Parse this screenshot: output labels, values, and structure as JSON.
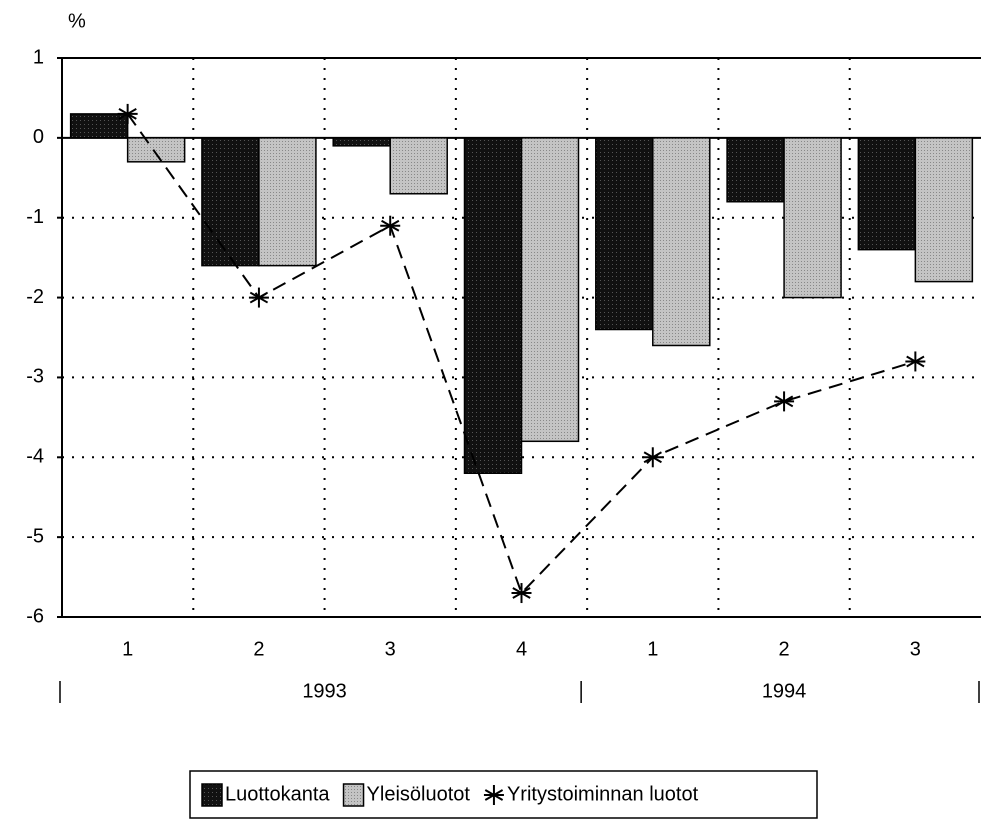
{
  "chart_data": {
    "type": "bar",
    "y_unit": "%",
    "categories": [
      "1",
      "2",
      "3",
      "4",
      "1",
      "2",
      "3"
    ],
    "groups": [
      {
        "label": "1993",
        "count": 4
      },
      {
        "label": "1994",
        "count": 3
      }
    ],
    "series": [
      {
        "name": "Luottokanta",
        "color": "#111111",
        "kind": "bar",
        "values": [
          0.3,
          -1.6,
          -0.1,
          -4.2,
          -2.4,
          -0.8,
          -1.4
        ]
      },
      {
        "name": "Yleisöluotot",
        "color": "#bbbbbb",
        "kind": "bar",
        "values": [
          -0.3,
          -1.6,
          -0.7,
          -3.8,
          -2.6,
          -2.0,
          -1.8
        ]
      },
      {
        "name": "Yritystoiminnan luotot",
        "color": "#000000",
        "kind": "line",
        "values": [
          0.3,
          -2.0,
          -1.1,
          -5.7,
          -4.0,
          -3.3,
          -2.8
        ]
      }
    ],
    "ylim": [
      -6,
      1
    ],
    "yticks": [
      1,
      0,
      -1,
      -2,
      -3,
      -4,
      -5,
      -6
    ],
    "grid": true
  }
}
